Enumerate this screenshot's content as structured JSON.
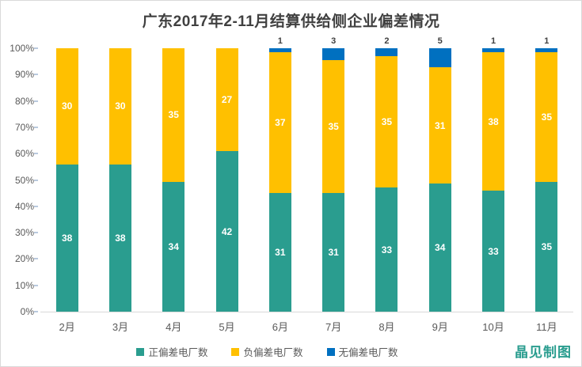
{
  "title": "广东2017年2-11月结算供给侧企业偏差情况",
  "watermark": "晶见制图",
  "style": {
    "title_color": "#404040",
    "axis_label_color": "#595959",
    "axis_line_color": "#d9d9d9",
    "tick_color": "#b9c9de",
    "inside_label_color": "#ffffff",
    "outside_label_color": "#404040",
    "watermark_color": "#2a9d8f",
    "background": "#ffffff"
  },
  "chart_data": {
    "type": "bar",
    "stacked": true,
    "percent_stacked": true,
    "title": "广东2017年2-11月结算供给侧企业偏差情况",
    "xlabel": "",
    "ylabel": "",
    "ylim": [
      0,
      100
    ],
    "y_ticks": [
      "0%",
      "10%",
      "20%",
      "30%",
      "40%",
      "50%",
      "60%",
      "70%",
      "80%",
      "90%",
      "100%"
    ],
    "grid": false,
    "legend_position": "bottom",
    "categories": [
      "2月",
      "3月",
      "4月",
      "5月",
      "6月",
      "7月",
      "8月",
      "9月",
      "10月",
      "11月"
    ],
    "series": [
      {
        "name": "正偏差电厂数",
        "color": "#2a9d8f",
        "labels": "inside",
        "values": [
          38,
          38,
          34,
          42,
          31,
          31,
          33,
          34,
          33,
          35
        ]
      },
      {
        "name": "负偏差电厂数",
        "color": "#ffc000",
        "labels": "inside",
        "values": [
          30,
          30,
          35,
          27,
          37,
          35,
          35,
          31,
          38,
          35
        ]
      },
      {
        "name": "无偏差电厂数",
        "color": "#0070c0",
        "labels": "outside",
        "values": [
          0,
          0,
          0,
          0,
          1,
          3,
          2,
          5,
          1,
          1
        ]
      }
    ]
  }
}
